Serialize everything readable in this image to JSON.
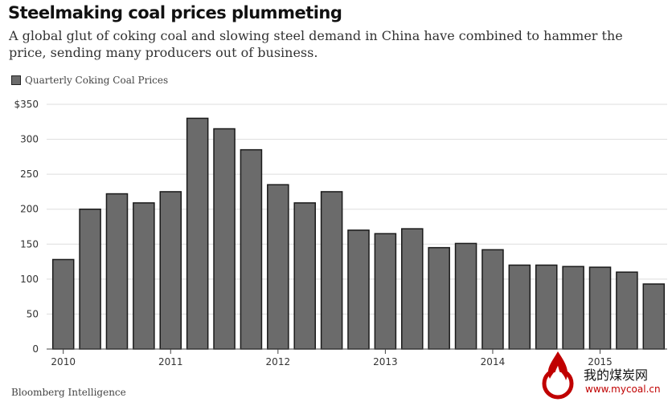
{
  "header": {
    "title": "Steelmaking coal prices plummeting",
    "subtitle": "A global glut of coking coal and slowing steel demand in China have combined to hammer the price, sending many producers out of business."
  },
  "legend": {
    "label": "Quarterly Coking Coal Prices"
  },
  "footer": {
    "source": "Bloomberg Intelligence"
  },
  "watermark": {
    "name": "我的煤炭网",
    "url": "www.mycoal.cn"
  },
  "colors": {
    "bar": "#6b6b6b",
    "bar_stroke": "#1a1a1a",
    "grid": "#dddddd",
    "axis": "#444444"
  },
  "chart_data": {
    "type": "bar",
    "title": "Steelmaking coal prices plummeting",
    "legend": "Quarterly Coking Coal Prices",
    "ylim": [
      0,
      350
    ],
    "yticks": [
      "0",
      "50",
      "100",
      "150",
      "200",
      "250",
      "300",
      "$350"
    ],
    "x_tick_labels": [
      "2010",
      "2011",
      "2012",
      "2013",
      "2014",
      "2015"
    ],
    "grid": true,
    "series": [
      {
        "values": [
          128,
          200,
          222,
          209,
          225,
          330,
          315,
          285,
          235,
          209,
          225,
          170,
          165,
          172,
          145,
          151,
          142,
          120,
          120,
          118,
          117,
          110,
          93
        ]
      }
    ]
  }
}
